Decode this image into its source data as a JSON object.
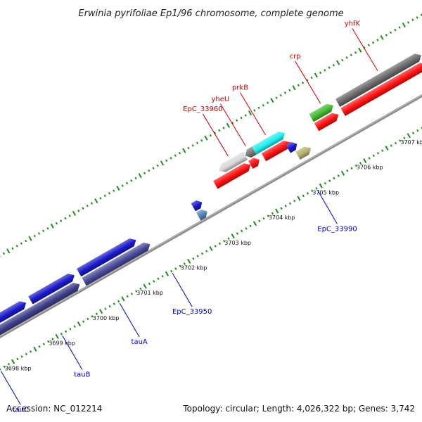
{
  "title": "Erwinia pyrifoliae Ep1/96 chromosome, complete genome",
  "footer": {
    "accession": "Accession: NC_012214",
    "summary": "Topology: circular; Length: 4,026,322 bp; Genes: 3,742"
  },
  "colors": {
    "backbone": "#8c8c8c",
    "tick": "#1f8a1f",
    "label_forward": "#cc0000",
    "label_reverse": "#0000cc"
  },
  "axis": {
    "unit": "kbp",
    "labels": [
      {
        "kbp": 3698,
        "text": "3698 kbp"
      },
      {
        "kbp": 3699,
        "text": "3699 kbp"
      },
      {
        "kbp": 3700,
        "text": "3700 kbp"
      },
      {
        "kbp": 3701,
        "text": "3701 kbp"
      },
      {
        "kbp": 3702,
        "text": "3702 kbp"
      },
      {
        "kbp": 3703,
        "text": "3703 kbp"
      },
      {
        "kbp": 3704,
        "text": "3704 kbp"
      },
      {
        "kbp": 3705,
        "text": "3705 kbp"
      },
      {
        "kbp": 3706,
        "text": "3706 kbp"
      },
      {
        "kbp": 3707,
        "text": "3707 kbp"
      }
    ]
  },
  "features": [
    {
      "track": 1,
      "start": 3696.6,
      "end": 3697.6,
      "color": "#1a1acc",
      "strand": "+"
    },
    {
      "track": 1,
      "start": 3697.6,
      "end": 3698.8,
      "color": "#1a1acc",
      "strand": "+"
    },
    {
      "track": 1,
      "start": 3698.9,
      "end": 3699.9,
      "color": "#1a1acc",
      "strand": "+"
    },
    {
      "track": 1,
      "start": 3700.0,
      "end": 3701.3,
      "color": "#1a1acc",
      "strand": "+"
    },
    {
      "track": 1,
      "start": 3702.6,
      "end": 3702.8,
      "color": "#1a1acc",
      "strand": "+"
    },
    {
      "track": 2,
      "start": 3697.3,
      "end": 3697.8,
      "color": "#13136e",
      "strand": "+"
    },
    {
      "track": 2,
      "start": 3697.8,
      "end": 3699.9,
      "color": "#3f3f8c",
      "strand": "+"
    },
    {
      "track": 2,
      "start": 3700.0,
      "end": 3701.5,
      "color": "#4a4a9a",
      "strand": "+"
    },
    {
      "track": 2,
      "start": 3702.6,
      "end": 3702.8,
      "color": "#4f86b8",
      "strand": "+"
    },
    {
      "track": 3,
      "start": 3703.4,
      "end": 3704.0,
      "color": "#d8d8d8",
      "strand": "-"
    },
    {
      "track": 3,
      "start": 3704.0,
      "end": 3704.2,
      "color": "#777777",
      "strand": "-"
    },
    {
      "track": 3,
      "start": 3704.2,
      "end": 3704.9,
      "color": "#22eeee",
      "strand": "+"
    },
    {
      "track": 3,
      "start": 3705.5,
      "end": 3706.0,
      "color": "#44bb33",
      "strand": "+"
    },
    {
      "track": 3,
      "start": 3706.1,
      "end": 3708.0,
      "color": "#6a6a6a",
      "strand": "+"
    },
    {
      "track": 4,
      "start": 3703.2,
      "end": 3704.0,
      "color": "#ff1111",
      "strand": "+"
    },
    {
      "track": 4,
      "start": 3704.0,
      "end": 3704.2,
      "color": "#ff1111",
      "strand": "+"
    },
    {
      "track": 4,
      "start": 3704.3,
      "end": 3704.9,
      "color": "#ff1111",
      "strand": "+"
    },
    {
      "track": 4,
      "start": 3705.5,
      "end": 3706.0,
      "color": "#ff1111",
      "strand": "+"
    },
    {
      "track": 4,
      "start": 3706.1,
      "end": 3708.0,
      "color": "#ff1111",
      "strand": "+"
    },
    {
      "track": 5,
      "start": 3704.8,
      "end": 3705.0,
      "color": "#1a1acc",
      "strand": "+"
    },
    {
      "track": 5,
      "start": 3708.7,
      "end": 3709.3,
      "color": "#1a1acc",
      "strand": "+"
    },
    {
      "track": 6,
      "start": 3704.9,
      "end": 3705.2,
      "color": "#b5b072",
      "strand": "+"
    },
    {
      "track": 6,
      "start": 3708.7,
      "end": 3709.3,
      "color": "#4f86b8",
      "strand": "+"
    }
  ],
  "gene_labels": [
    {
      "text": "yhfK",
      "strand": "+",
      "kbp": 3707.1
    },
    {
      "text": "crp",
      "strand": "+",
      "kbp": 3705.8
    },
    {
      "text": "prkB",
      "strand": "+",
      "kbp": 3704.55
    },
    {
      "text": "yheU",
      "strand": "+",
      "kbp": 3704.1
    },
    {
      "text": "EpC_33960",
      "strand": "+",
      "kbp": 3703.7
    },
    {
      "text": "EpC_33990",
      "strand": "-",
      "kbp": 3704.9
    },
    {
      "text": "EpC_33950",
      "strand": "-",
      "kbp": 3701.6
    },
    {
      "text": "tauA",
      "strand": "-",
      "kbp": 3700.4
    },
    {
      "text": "tauB",
      "strand": "-",
      "kbp": 3699.1
    },
    {
      "text": "tauC",
      "strand": "-",
      "kbp": 3697.7
    }
  ]
}
